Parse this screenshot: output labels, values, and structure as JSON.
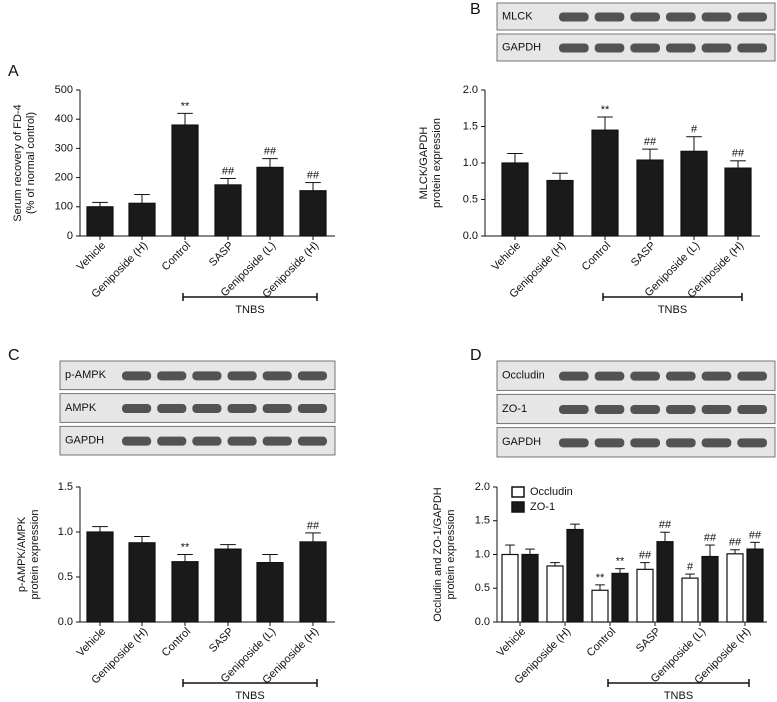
{
  "chart_data": [
    {
      "type": "bar",
      "panel": "A",
      "ylabel": [
        "Serum recovery of FD-4",
        "(% of normal control)"
      ],
      "categories": [
        "Vehicle",
        "Geniposide (H)",
        "Control",
        "SASP",
        "Geniposide (L)",
        "Geniposide (H)"
      ],
      "values": [
        100,
        112,
        380,
        175,
        235,
        155
      ],
      "errors": [
        15,
        30,
        40,
        22,
        30,
        28
      ],
      "annotations": [
        null,
        null,
        "**",
        "##",
        "##",
        "##"
      ],
      "color": "#1a1a1a",
      "ylim": [
        0,
        500
      ],
      "yticks": [
        0,
        100,
        200,
        300,
        400,
        500
      ],
      "group_label": "TNBS"
    },
    {
      "type": "bar",
      "panel": "B",
      "blots": [
        "MLCK",
        "GAPDH"
      ],
      "ylabel": [
        "MLCK/GAPDH",
        "protein expression"
      ],
      "categories": [
        "Vehicle",
        "Geniposide (H)",
        "Control",
        "SASP",
        "Geniposide (L)",
        "Geniposide (H)"
      ],
      "values": [
        1.0,
        0.76,
        1.45,
        1.04,
        1.16,
        0.93
      ],
      "errors": [
        0.13,
        0.1,
        0.18,
        0.15,
        0.2,
        0.1
      ],
      "annotations": [
        null,
        null,
        "**",
        "##",
        "#",
        "##"
      ],
      "color": "#1a1a1a",
      "ylim": [
        0,
        2
      ],
      "yticks": [
        {
          "value": 0,
          "label": "0.0"
        },
        {
          "value": 0.5,
          "label": "0.5"
        },
        {
          "value": 1,
          "label": "1.0"
        },
        {
          "value": 1.5,
          "label": "1.5"
        },
        {
          "value": 2,
          "label": "2.0"
        }
      ],
      "group_label": "TNBS"
    },
    {
      "type": "bar",
      "panel": "C",
      "blots": [
        "p-AMPK",
        "AMPK",
        "GAPDH"
      ],
      "ylabel": [
        "p-AMPK/AMPK",
        "protein expression"
      ],
      "categories": [
        "Vehicle",
        "Geniposide (H)",
        "Control",
        "SASP",
        "Geniposide (L)",
        "Geniposide (H)"
      ],
      "values": [
        1.0,
        0.88,
        0.67,
        0.81,
        0.66,
        0.89
      ],
      "errors": [
        0.06,
        0.07,
        0.08,
        0.05,
        0.09,
        0.1
      ],
      "annotations": [
        null,
        null,
        "**",
        null,
        null,
        "##"
      ],
      "color": "#1a1a1a",
      "ylim": [
        0,
        1.5
      ],
      "yticks": [
        {
          "value": 0,
          "label": "0.0"
        },
        {
          "value": 0.5,
          "label": "0.5"
        },
        {
          "value": 1,
          "label": "1.0"
        },
        {
          "value": 1.5,
          "label": "1.5"
        }
      ],
      "group_label": "TNBS"
    },
    {
      "type": "grouped-bar",
      "panel": "D",
      "blots": [
        "Occludin",
        "ZO-1",
        "GAPDH"
      ],
      "ylabel": [
        "Occludin and ZO-1/GAPDH",
        "protein expression"
      ],
      "categories": [
        "Vehicle",
        "Geniposide (H)",
        "Control",
        "SASP",
        "Geniposide (L)",
        "Geniposide (H)"
      ],
      "series": [
        {
          "name": "Occludin",
          "color": "#ffffff",
          "values": [
            1.0,
            0.83,
            0.47,
            0.78,
            0.65,
            1.01
          ],
          "errors": [
            0.14,
            0.05,
            0.08,
            0.1,
            0.06,
            0.06
          ],
          "annotations": [
            null,
            null,
            "**",
            "##",
            "#",
            "##"
          ]
        },
        {
          "name": "ZO-1",
          "color": "#1a1a1a",
          "values": [
            1.0,
            1.37,
            0.72,
            1.19,
            0.97,
            1.08
          ],
          "errors": [
            0.08,
            0.08,
            0.07,
            0.14,
            0.17,
            0.1
          ],
          "annotations": [
            null,
            null,
            "**",
            "##",
            "##",
            "##"
          ]
        }
      ],
      "ylim": [
        0,
        2
      ],
      "yticks": [
        {
          "value": 0,
          "label": "0.0"
        },
        {
          "value": 0.5,
          "label": "0.5"
        },
        {
          "value": 1,
          "label": "1.0"
        },
        {
          "value": 1.5,
          "label": "1.5"
        },
        {
          "value": 2,
          "label": "2.0"
        }
      ],
      "group_label": "TNBS"
    }
  ]
}
